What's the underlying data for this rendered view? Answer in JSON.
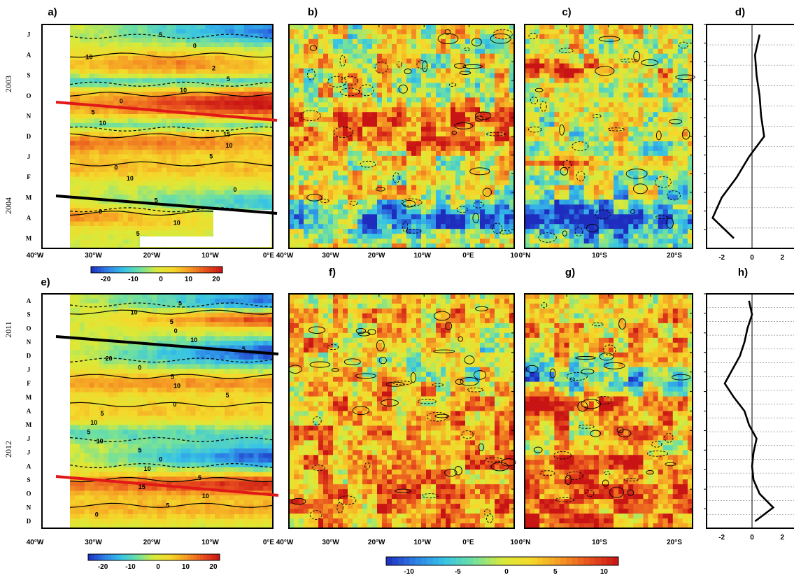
{
  "colors": {
    "scale": [
      "#1e2dbe",
      "#2d7fe6",
      "#36c3e6",
      "#6fe0a0",
      "#d8ea3a",
      "#f5d82a",
      "#f59a24",
      "#e8501e",
      "#c81414"
    ],
    "line_black": "#000000",
    "line_red": "#e01818"
  },
  "chart_data": [
    {
      "type": "heatmap",
      "panel": "a",
      "years": [
        "2003",
        "2004"
      ],
      "months": [
        "J",
        "A",
        "S",
        "O",
        "N",
        "D",
        "J",
        "F",
        "M",
        "A",
        "M"
      ],
      "x_ticks": [
        "40°W",
        "30°W",
        "20°W",
        "10°W",
        "0°E"
      ],
      "contour_labels": [
        "5",
        "0",
        "10",
        "2",
        "5",
        "10",
        "0",
        "5",
        "10",
        "15",
        "10",
        "5",
        "0",
        "10",
        "0",
        "5",
        "0",
        "10",
        "5"
      ],
      "lines": [
        {
          "color": "red",
          "from_month": "O-N"
        },
        {
          "color": "black",
          "from_month": "M"
        }
      ],
      "colorbar": {
        "ticks": [
          "-20",
          "-10",
          "0",
          "10",
          "20"
        ],
        "range": [
          -20,
          20
        ]
      }
    },
    {
      "type": "heatmap",
      "panel": "b",
      "x_ticks": [
        "40°W",
        "30°W",
        "20°W",
        "10°W",
        "0°E",
        "10"
      ]
    },
    {
      "type": "heatmap",
      "panel": "c",
      "x_ticks": [
        "0°N",
        "10°S",
        "20°S"
      ]
    },
    {
      "type": "line",
      "panel": "d",
      "x_ticks": [
        "-2",
        "0",
        "2"
      ],
      "xlim": [
        -3,
        3
      ],
      "values": [
        0.5,
        0.2,
        0.3,
        0.5,
        0.6,
        0.8,
        -0.2,
        -1.0,
        -2.0,
        -2.6,
        -1.2
      ]
    },
    {
      "type": "heatmap",
      "panel": "e",
      "years": [
        "2011",
        "2012"
      ],
      "months": [
        "A",
        "S",
        "O",
        "N",
        "D",
        "J",
        "F",
        "M",
        "A",
        "M",
        "J",
        "J",
        "A",
        "S",
        "O",
        "N",
        "D"
      ],
      "x_ticks": [
        "40°W",
        "30°W",
        "20°W",
        "10°W",
        "0°E"
      ],
      "contour_labels": [
        "5",
        "10",
        "5",
        "0",
        "10",
        "5",
        "20",
        "0",
        "5",
        "10",
        "5",
        "0",
        "5",
        "10",
        "5",
        "10",
        "5",
        "0",
        "10",
        "5",
        "15",
        "10",
        "5",
        "0"
      ],
      "lines": [
        {
          "color": "black",
          "from_month": "O-N"
        },
        {
          "color": "red",
          "from_month": "A-S"
        }
      ],
      "colorbar": {
        "ticks": [
          "-20",
          "-10",
          "0",
          "10",
          "20"
        ],
        "range": [
          -25,
          25
        ]
      }
    },
    {
      "type": "heatmap",
      "panel": "f",
      "x_ticks": [
        "40°W",
        "30°W",
        "20°W",
        "10°W",
        "0°E",
        "10"
      ]
    },
    {
      "type": "heatmap",
      "panel": "g",
      "x_ticks": [
        "0°N",
        "10°S",
        "20°S"
      ]
    },
    {
      "type": "line",
      "panel": "h",
      "x_ticks": [
        "-2",
        "0",
        "2"
      ],
      "xlim": [
        -3,
        3
      ],
      "values": [
        -0.2,
        0.0,
        -0.3,
        -0.5,
        -0.8,
        -1.3,
        -1.8,
        -1.2,
        -0.5,
        -0.2,
        0.3,
        0.1,
        0.0,
        0.1,
        0.5,
        1.4,
        0.2
      ]
    },
    {
      "type": "heatmap",
      "panel": "colorbar-bottom",
      "colorbar": {
        "ticks": [
          "-10",
          "-5",
          "0",
          "5",
          "10"
        ],
        "range": [
          -10,
          10
        ]
      }
    }
  ]
}
